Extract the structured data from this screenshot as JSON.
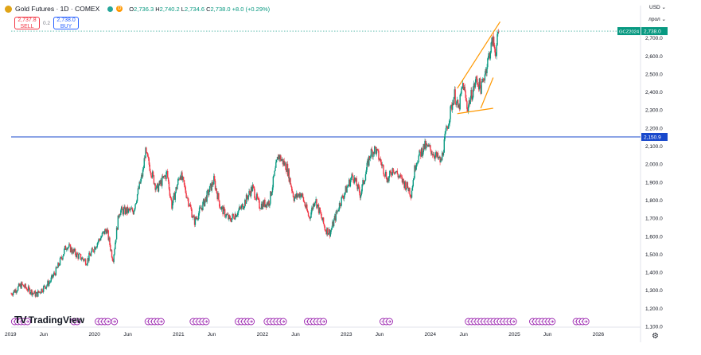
{
  "header": {
    "title": "Gold Futures · 1D · COMEX",
    "interval_badge": "D",
    "open_label": "O",
    "open": "2,736.3",
    "high_label": "H",
    "high": "2,740.2",
    "low_label": "L",
    "low": "2,734.6",
    "close_label": "C",
    "close": "2,738.0",
    "change": "+8.0 (+0.29%)"
  },
  "trade": {
    "sell_price": "2,737.8",
    "sell_label": "SELL",
    "spread": "0.2",
    "buy_price": "2,738.0",
    "buy_label": "BUY"
  },
  "top_right": {
    "currency": "USD",
    "scale_mode": "лрол"
  },
  "logo": {
    "mark": "TV",
    "name": "TradingView"
  },
  "settings_icon": "gear-icon",
  "colors": {
    "up": "#089981",
    "down": "#f23645",
    "hline": "#1848cc",
    "channel": "#ff9800",
    "event": "#9c27b0"
  },
  "chart_data": {
    "type": "candlestick",
    "ylim": [
      1100,
      2800
    ],
    "ytick_values": [
      1100,
      1200,
      1300,
      1400,
      1500,
      1600,
      1700,
      1800,
      1900,
      2000,
      2100,
      2200,
      2300,
      2400,
      2500,
      2600,
      2700
    ],
    "ytick_labels": [
      "1,100.0",
      "1,200.0",
      "1,300.0",
      "1,400.0",
      "1,500.0",
      "1,600.0",
      "1,700.0",
      "1,800.0",
      "1,900.0",
      "2,000.0",
      "2,100.0",
      "2,200.0",
      "2,300.0",
      "2,400.0",
      "2,500.0",
      "2,600.0",
      "2,700.0"
    ],
    "xlim": [
      "2019-01-01",
      "2026-07-01"
    ],
    "xticks": [
      {
        "date": "2019-01-01",
        "label": "2019"
      },
      {
        "date": "2019-06-01",
        "label": "Jun"
      },
      {
        "date": "2020-01-01",
        "label": "2020"
      },
      {
        "date": "2020-06-01",
        "label": "Jun"
      },
      {
        "date": "2021-01-01",
        "label": "2021"
      },
      {
        "date": "2021-06-01",
        "label": "Jun"
      },
      {
        "date": "2022-01-01",
        "label": "2022"
      },
      {
        "date": "2022-06-01",
        "label": "Jun"
      },
      {
        "date": "2023-01-01",
        "label": "2023"
      },
      {
        "date": "2023-06-01",
        "label": "Jun"
      },
      {
        "date": "2024-01-01",
        "label": "2024"
      },
      {
        "date": "2024-06-01",
        "label": "Jun"
      },
      {
        "date": "2025-01-01",
        "label": "2025"
      },
      {
        "date": "2025-06-01",
        "label": "Jun"
      },
      {
        "date": "2026-01-01",
        "label": "2026"
      }
    ],
    "price_path": [
      [
        "2019-01-01",
        1282
      ],
      [
        "2019-02-15",
        1330
      ],
      [
        "2019-04-20",
        1275
      ],
      [
        "2019-06-20",
        1350
      ],
      [
        "2019-07-20",
        1420
      ],
      [
        "2019-08-30",
        1550
      ],
      [
        "2019-10-15",
        1495
      ],
      [
        "2019-11-25",
        1460
      ],
      [
        "2020-01-08",
        1560
      ],
      [
        "2020-02-20",
        1640
      ],
      [
        "2020-03-19",
        1470
      ],
      [
        "2020-04-15",
        1740
      ],
      [
        "2020-06-15",
        1740
      ],
      [
        "2020-07-28",
        1960
      ],
      [
        "2020-08-06",
        2070
      ],
      [
        "2020-09-25",
        1860
      ],
      [
        "2020-11-09",
        1950
      ],
      [
        "2020-11-30",
        1770
      ],
      [
        "2021-01-06",
        1950
      ],
      [
        "2021-03-08",
        1680
      ],
      [
        "2021-04-20",
        1790
      ],
      [
        "2021-06-01",
        1910
      ],
      [
        "2021-06-30",
        1760
      ],
      [
        "2021-08-09",
        1690
      ],
      [
        "2021-09-30",
        1760
      ],
      [
        "2021-11-16",
        1870
      ],
      [
        "2021-12-15",
        1770
      ],
      [
        "2022-01-28",
        1790
      ],
      [
        "2022-03-08",
        2050
      ],
      [
        "2022-04-15",
        1980
      ],
      [
        "2022-05-16",
        1810
      ],
      [
        "2022-06-15",
        1840
      ],
      [
        "2022-07-21",
        1700
      ],
      [
        "2022-08-15",
        1810
      ],
      [
        "2022-09-28",
        1640
      ],
      [
        "2022-10-20",
        1620
      ],
      [
        "2022-11-30",
        1780
      ],
      [
        "2023-01-26",
        1940
      ],
      [
        "2023-02-28",
        1830
      ],
      [
        "2023-04-13",
        2060
      ],
      [
        "2023-05-04",
        2085
      ],
      [
        "2023-06-29",
        1910
      ],
      [
        "2023-07-20",
        1980
      ],
      [
        "2023-08-21",
        1920
      ],
      [
        "2023-09-29",
        1860
      ],
      [
        "2023-10-06",
        1830
      ],
      [
        "2023-10-27",
        2010
      ],
      [
        "2023-12-04",
        2100
      ],
      [
        "2023-12-27",
        2085
      ],
      [
        "2024-02-14",
        2010
      ],
      [
        "2024-03-08",
        2185
      ],
      [
        "2024-04-12",
        2390
      ],
      [
        "2024-04-30",
        2300
      ],
      [
        "2024-05-20",
        2450
      ],
      [
        "2024-06-07",
        2310
      ],
      [
        "2024-07-17",
        2470
      ],
      [
        "2024-08-07",
        2420
      ],
      [
        "2024-09-26",
        2690
      ],
      [
        "2024-10-08",
        2620
      ],
      [
        "2024-10-23",
        2738
      ]
    ],
    "last_price": "2,738.0",
    "last_price_value": 2738,
    "last_price_label": "GCZ2024",
    "horizontal_line": "2,150.9",
    "horizontal_line_value": 2150.9,
    "channel_upper": [
      [
        "2024-04-25",
        2420
      ],
      [
        "2024-10-28",
        2790
      ]
    ],
    "channel_lower": [
      [
        "2024-04-25",
        2280
      ],
      [
        "2024-09-28",
        2310
      ]
    ],
    "channel_mid": [
      [
        "2024-08-05",
        2310
      ],
      [
        "2024-09-28",
        2480
      ]
    ],
    "event_dates": [
      "2019-01-16",
      "2019-01-30",
      "2019-02-13",
      "2019-02-27",
      "2019-03-13",
      "2019-10-01",
      "2019-10-15",
      "2020-01-15",
      "2020-01-29",
      "2020-02-12",
      "2020-02-26",
      "2020-03-25",
      "2020-08-19",
      "2020-09-02",
      "2020-09-16",
      "2020-09-30",
      "2020-10-14",
      "2021-03-03",
      "2021-03-17",
      "2021-03-31",
      "2021-04-14",
      "2021-04-28",
      "2021-09-15",
      "2021-09-29",
      "2021-10-13",
      "2021-10-27",
      "2021-11-10",
      "2022-01-19",
      "2022-02-02",
      "2022-02-16",
      "2022-03-02",
      "2022-03-16",
      "2022-03-30",
      "2022-07-13",
      "2022-07-27",
      "2022-08-10",
      "2022-08-24",
      "2022-09-07",
      "2022-09-21",
      "2023-06-07",
      "2023-06-21",
      "2023-07-05",
      "2024-06-12",
      "2024-06-26",
      "2024-07-10",
      "2024-07-24",
      "2024-08-07",
      "2024-08-21",
      "2024-09-04",
      "2024-09-18",
      "2024-10-02",
      "2024-10-16",
      "2024-10-30",
      "2024-11-13",
      "2024-11-27",
      "2024-12-11",
      "2024-12-25",
      "2025-03-19",
      "2025-04-02",
      "2025-04-16",
      "2025-04-30",
      "2025-05-14",
      "2025-05-28",
      "2025-06-11",
      "2025-09-24",
      "2025-10-08",
      "2025-10-22",
      "2025-11-05"
    ]
  }
}
